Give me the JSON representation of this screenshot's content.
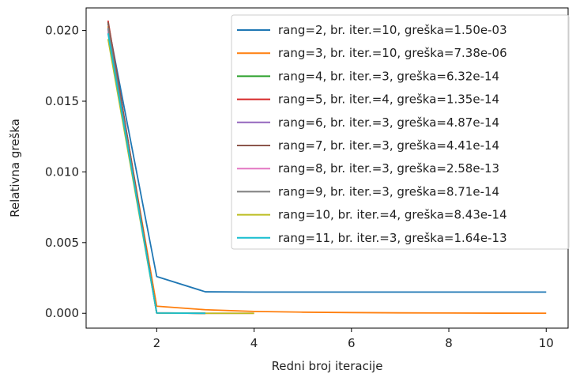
{
  "chart_data": {
    "type": "line",
    "title": "",
    "xlabel": "Redni broj iteracije",
    "ylabel": "Relativna greška",
    "xlim": [
      0.55,
      10.45
    ],
    "ylim": [
      -0.00105,
      0.0216
    ],
    "x_ticks": [
      2,
      4,
      6,
      8,
      10
    ],
    "x_tick_labels": [
      "2",
      "4",
      "6",
      "8",
      "10"
    ],
    "y_ticks": [
      0.0,
      0.005,
      0.01,
      0.015,
      0.02
    ],
    "y_tick_labels": [
      "0.000",
      "0.005",
      "0.010",
      "0.015",
      "0.020"
    ],
    "grid": false,
    "legend_position": "upper right",
    "series": [
      {
        "name": "rang=2, br. iter.=10, greška=1.50e-03",
        "color": "#1f77b4",
        "x": [
          1,
          2,
          3,
          4,
          5,
          6,
          7,
          8,
          9,
          10
        ],
        "y": [
          0.0205,
          0.0026,
          0.00152,
          0.0015,
          0.0015,
          0.0015,
          0.0015,
          0.0015,
          0.0015,
          0.0015
        ]
      },
      {
        "name": "rang=3, br. iter.=10, greška=7.38e-06",
        "color": "#ff7f0e",
        "x": [
          1,
          2,
          3,
          4,
          5,
          6,
          7,
          8,
          9,
          10
        ],
        "y": [
          0.0203,
          0.0005,
          0.00025,
          0.00013,
          8e-05,
          5e-05,
          3e-05,
          2e-05,
          1e-05,
          7.4e-06
        ]
      },
      {
        "name": "rang=4, br. iter.=3, greška=6.32e-14",
        "color": "#2ca02c",
        "x": [
          1,
          2,
          3
        ],
        "y": [
          0.0206,
          2e-05,
          0.0
        ]
      },
      {
        "name": "rang=5, br. iter.=4, greška=1.35e-14",
        "color": "#d62728",
        "x": [
          1,
          2,
          3,
          4
        ],
        "y": [
          0.0207,
          3e-05,
          0.0,
          0.0
        ]
      },
      {
        "name": "rang=6, br. iter.=3, greška=4.87e-14",
        "color": "#9467bd",
        "x": [
          1,
          2,
          3
        ],
        "y": [
          0.0201,
          2e-05,
          0.0
        ]
      },
      {
        "name": "rang=7, br. iter.=3, greška=4.41e-14",
        "color": "#8c564b",
        "x": [
          1,
          2,
          3
        ],
        "y": [
          0.0206,
          2e-05,
          0.0
        ]
      },
      {
        "name": "rang=8, br. iter.=3, greška=2.58e-13",
        "color": "#e377c2",
        "x": [
          1,
          2,
          3
        ],
        "y": [
          0.0199,
          2e-05,
          0.0
        ]
      },
      {
        "name": "rang=9, br. iter.=3, greška=8.71e-14",
        "color": "#7f7f7f",
        "x": [
          1,
          2,
          3
        ],
        "y": [
          0.0202,
          2e-05,
          0.0
        ]
      },
      {
        "name": "rang=10, br. iter.=4, greška=8.43e-14",
        "color": "#bcbd22",
        "x": [
          1,
          2,
          3,
          4
        ],
        "y": [
          0.0194,
          2e-05,
          0.0,
          0.0
        ]
      },
      {
        "name": "rang=11, br. iter.=3, greška=1.64e-13",
        "color": "#17becf",
        "x": [
          1,
          2,
          3
        ],
        "y": [
          0.0198,
          2e-05,
          0.0
        ]
      }
    ]
  }
}
